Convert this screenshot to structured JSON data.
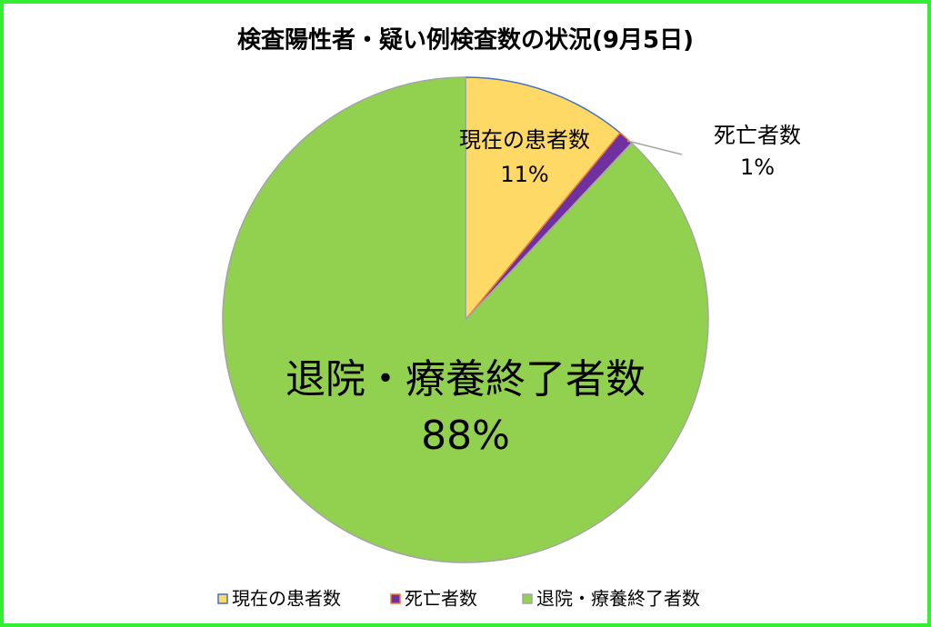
{
  "chart_data": {
    "type": "pie",
    "title": "検査陽性者・疑い例検査数の状況(9月5日)",
    "categories": [
      "現在の患者数",
      "死亡者数",
      "退院・療養終了者数"
    ],
    "values": [
      11,
      1,
      88
    ],
    "value_labels": [
      "11%",
      "1%",
      "88%"
    ],
    "colors": [
      "#ffd966",
      "#7030a0",
      "#92d050"
    ],
    "border_colors": [
      "#4472c4",
      "#ed7d31",
      "#a5a5a5"
    ]
  }
}
